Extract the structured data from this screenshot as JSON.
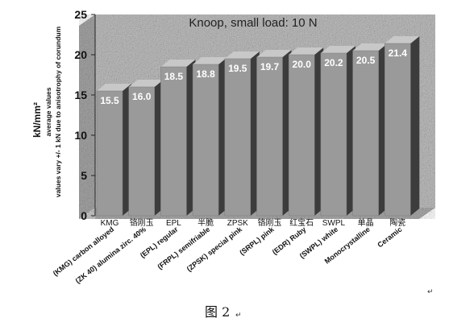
{
  "chart_data": {
    "type": "bar",
    "title": "Knoop, small load: 10 N",
    "ylabel": "kN/mm²",
    "ylabel_sub": [
      "average values",
      "values vary +/- 1 kN due to anisotrophy of corundum"
    ],
    "ylim": [
      0,
      25
    ],
    "yticks": [
      0,
      5,
      10,
      15,
      20,
      25
    ],
    "categories_top": [
      "KMG",
      "铬刚玉",
      "EPL",
      "半脆",
      "ZPSK",
      "铬刚玉",
      "红宝石",
      "SWPL",
      "单晶",
      "陶瓷"
    ],
    "categories": [
      "(KMG) carbon alloyed",
      "(ZK 40) alumina zirc. 40%",
      "(EPL) regular",
      "(FRPL) semifriable",
      "(ZPSK) special pink",
      "(SRPL) pink",
      "(EDR) Ruby",
      "(SWPL) white",
      "Monocrystalline",
      "Ceramic"
    ],
    "values": [
      15.5,
      16.0,
      18.5,
      18.8,
      19.5,
      19.7,
      20.0,
      20.2,
      20.5,
      21.4
    ],
    "data_labels": [
      "15.5",
      "16.0",
      "18.5",
      "18.8",
      "19.5",
      "19.7",
      "20.0",
      "20.2",
      "20.5",
      "21.4"
    ],
    "bar_color": "#9a9a9a",
    "bar_side_color": "#3c3c3c",
    "background": "granite-gray",
    "grid": false
  },
  "caption": "图 2",
  "return_marks": [
    "↵",
    "↵"
  ]
}
